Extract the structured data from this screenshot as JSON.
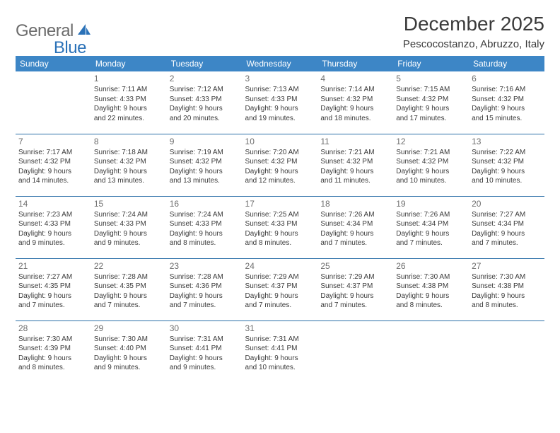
{
  "brand": {
    "general": "General",
    "blue": "Blue"
  },
  "title": "December 2025",
  "location": "Pescocostanzo, Abruzzo, Italy",
  "colors": {
    "header_bg": "#3d86c6",
    "header_text": "#ffffff",
    "rule": "#2b6fa8",
    "daynum": "#6e6e6e",
    "body_text": "#3a3a3a",
    "logo_gray": "#6c6c6c",
    "logo_blue": "#2b72b8",
    "page_bg": "#ffffff"
  },
  "typography": {
    "title_fontsize": 28,
    "location_fontsize": 15,
    "header_cell_fontsize": 12,
    "daynum_fontsize": 12,
    "body_fontsize": 10
  },
  "layout": {
    "columns": 7,
    "rows": 5,
    "start_day_index": 1,
    "days_in_month": 31
  },
  "weekdays": [
    "Sunday",
    "Monday",
    "Tuesday",
    "Wednesday",
    "Thursday",
    "Friday",
    "Saturday"
  ],
  "days": [
    {
      "n": "1",
      "sunrise": "Sunrise: 7:11 AM",
      "sunset": "Sunset: 4:33 PM",
      "d1": "Daylight: 9 hours",
      "d2": "and 22 minutes."
    },
    {
      "n": "2",
      "sunrise": "Sunrise: 7:12 AM",
      "sunset": "Sunset: 4:33 PM",
      "d1": "Daylight: 9 hours",
      "d2": "and 20 minutes."
    },
    {
      "n": "3",
      "sunrise": "Sunrise: 7:13 AM",
      "sunset": "Sunset: 4:33 PM",
      "d1": "Daylight: 9 hours",
      "d2": "and 19 minutes."
    },
    {
      "n": "4",
      "sunrise": "Sunrise: 7:14 AM",
      "sunset": "Sunset: 4:32 PM",
      "d1": "Daylight: 9 hours",
      "d2": "and 18 minutes."
    },
    {
      "n": "5",
      "sunrise": "Sunrise: 7:15 AM",
      "sunset": "Sunset: 4:32 PM",
      "d1": "Daylight: 9 hours",
      "d2": "and 17 minutes."
    },
    {
      "n": "6",
      "sunrise": "Sunrise: 7:16 AM",
      "sunset": "Sunset: 4:32 PM",
      "d1": "Daylight: 9 hours",
      "d2": "and 15 minutes."
    },
    {
      "n": "7",
      "sunrise": "Sunrise: 7:17 AM",
      "sunset": "Sunset: 4:32 PM",
      "d1": "Daylight: 9 hours",
      "d2": "and 14 minutes."
    },
    {
      "n": "8",
      "sunrise": "Sunrise: 7:18 AM",
      "sunset": "Sunset: 4:32 PM",
      "d1": "Daylight: 9 hours",
      "d2": "and 13 minutes."
    },
    {
      "n": "9",
      "sunrise": "Sunrise: 7:19 AM",
      "sunset": "Sunset: 4:32 PM",
      "d1": "Daylight: 9 hours",
      "d2": "and 13 minutes."
    },
    {
      "n": "10",
      "sunrise": "Sunrise: 7:20 AM",
      "sunset": "Sunset: 4:32 PM",
      "d1": "Daylight: 9 hours",
      "d2": "and 12 minutes."
    },
    {
      "n": "11",
      "sunrise": "Sunrise: 7:21 AM",
      "sunset": "Sunset: 4:32 PM",
      "d1": "Daylight: 9 hours",
      "d2": "and 11 minutes."
    },
    {
      "n": "12",
      "sunrise": "Sunrise: 7:21 AM",
      "sunset": "Sunset: 4:32 PM",
      "d1": "Daylight: 9 hours",
      "d2": "and 10 minutes."
    },
    {
      "n": "13",
      "sunrise": "Sunrise: 7:22 AM",
      "sunset": "Sunset: 4:32 PM",
      "d1": "Daylight: 9 hours",
      "d2": "and 10 minutes."
    },
    {
      "n": "14",
      "sunrise": "Sunrise: 7:23 AM",
      "sunset": "Sunset: 4:33 PM",
      "d1": "Daylight: 9 hours",
      "d2": "and 9 minutes."
    },
    {
      "n": "15",
      "sunrise": "Sunrise: 7:24 AM",
      "sunset": "Sunset: 4:33 PM",
      "d1": "Daylight: 9 hours",
      "d2": "and 9 minutes."
    },
    {
      "n": "16",
      "sunrise": "Sunrise: 7:24 AM",
      "sunset": "Sunset: 4:33 PM",
      "d1": "Daylight: 9 hours",
      "d2": "and 8 minutes."
    },
    {
      "n": "17",
      "sunrise": "Sunrise: 7:25 AM",
      "sunset": "Sunset: 4:33 PM",
      "d1": "Daylight: 9 hours",
      "d2": "and 8 minutes."
    },
    {
      "n": "18",
      "sunrise": "Sunrise: 7:26 AM",
      "sunset": "Sunset: 4:34 PM",
      "d1": "Daylight: 9 hours",
      "d2": "and 7 minutes."
    },
    {
      "n": "19",
      "sunrise": "Sunrise: 7:26 AM",
      "sunset": "Sunset: 4:34 PM",
      "d1": "Daylight: 9 hours",
      "d2": "and 7 minutes."
    },
    {
      "n": "20",
      "sunrise": "Sunrise: 7:27 AM",
      "sunset": "Sunset: 4:34 PM",
      "d1": "Daylight: 9 hours",
      "d2": "and 7 minutes."
    },
    {
      "n": "21",
      "sunrise": "Sunrise: 7:27 AM",
      "sunset": "Sunset: 4:35 PM",
      "d1": "Daylight: 9 hours",
      "d2": "and 7 minutes."
    },
    {
      "n": "22",
      "sunrise": "Sunrise: 7:28 AM",
      "sunset": "Sunset: 4:35 PM",
      "d1": "Daylight: 9 hours",
      "d2": "and 7 minutes."
    },
    {
      "n": "23",
      "sunrise": "Sunrise: 7:28 AM",
      "sunset": "Sunset: 4:36 PM",
      "d1": "Daylight: 9 hours",
      "d2": "and 7 minutes."
    },
    {
      "n": "24",
      "sunrise": "Sunrise: 7:29 AM",
      "sunset": "Sunset: 4:37 PM",
      "d1": "Daylight: 9 hours",
      "d2": "and 7 minutes."
    },
    {
      "n": "25",
      "sunrise": "Sunrise: 7:29 AM",
      "sunset": "Sunset: 4:37 PM",
      "d1": "Daylight: 9 hours",
      "d2": "and 7 minutes."
    },
    {
      "n": "26",
      "sunrise": "Sunrise: 7:30 AM",
      "sunset": "Sunset: 4:38 PM",
      "d1": "Daylight: 9 hours",
      "d2": "and 8 minutes."
    },
    {
      "n": "27",
      "sunrise": "Sunrise: 7:30 AM",
      "sunset": "Sunset: 4:38 PM",
      "d1": "Daylight: 9 hours",
      "d2": "and 8 minutes."
    },
    {
      "n": "28",
      "sunrise": "Sunrise: 7:30 AM",
      "sunset": "Sunset: 4:39 PM",
      "d1": "Daylight: 9 hours",
      "d2": "and 8 minutes."
    },
    {
      "n": "29",
      "sunrise": "Sunrise: 7:30 AM",
      "sunset": "Sunset: 4:40 PM",
      "d1": "Daylight: 9 hours",
      "d2": "and 9 minutes."
    },
    {
      "n": "30",
      "sunrise": "Sunrise: 7:31 AM",
      "sunset": "Sunset: 4:41 PM",
      "d1": "Daylight: 9 hours",
      "d2": "and 9 minutes."
    },
    {
      "n": "31",
      "sunrise": "Sunrise: 7:31 AM",
      "sunset": "Sunset: 4:41 PM",
      "d1": "Daylight: 9 hours",
      "d2": "and 10 minutes."
    }
  ]
}
